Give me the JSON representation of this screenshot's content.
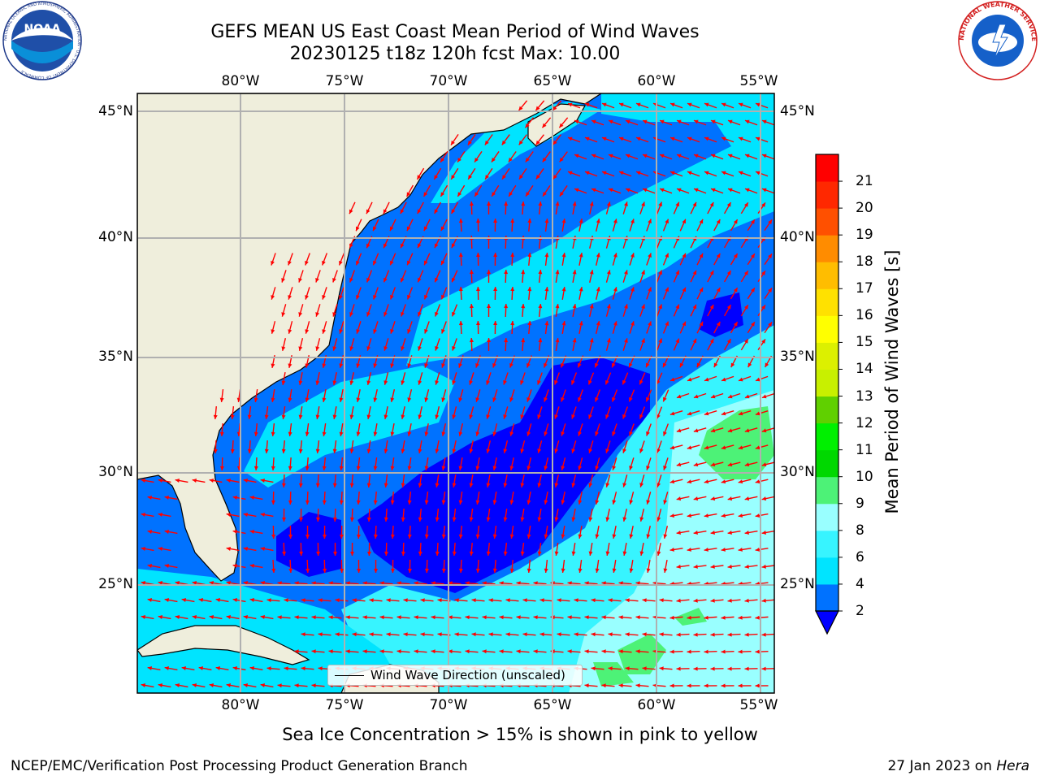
{
  "title": {
    "line1": "GEFS MEAN US East Coast Mean Period of Wind Waves",
    "line2": "20230125 t18z 120h fcst   Max: 10.00"
  },
  "map": {
    "region": "US East Coast / Western North Atlantic",
    "land_color": "#efeedc",
    "grid_color": "#b0b0b0",
    "arrow_color": "#ff0000",
    "longitude_labels": [
      "80°W",
      "75°W",
      "70°W",
      "65°W",
      "60°W",
      "55°W"
    ],
    "latitude_labels": [
      "45°N",
      "40°N",
      "35°N",
      "30°N",
      "25°N"
    ]
  },
  "colorbar": {
    "label": "Mean Period of Wind Waves [s]",
    "ticks": [
      "2",
      "4",
      "6",
      "8",
      "9",
      "10",
      "11",
      "12",
      "13",
      "14",
      "15",
      "16",
      "17",
      "18",
      "19",
      "20",
      "21"
    ],
    "colors": [
      "#0072ff",
      "#00e4ff",
      "#37f4ff",
      "#99ffff",
      "#4df277",
      "#00d800",
      "#00f000",
      "#60d000",
      "#c8f000",
      "#dcf000",
      "#ffff00",
      "#ffe100",
      "#ffbd00",
      "#ff8c00",
      "#ff5000",
      "#ff2800",
      "#ff0000"
    ],
    "extend_low_color": "#0000ff"
  },
  "legend": {
    "label": "Wind Wave Direction (unscaled)"
  },
  "caption": "Sea Ice Concentration > 15% is shown in pink to yellow",
  "footer": {
    "left": "NCEP/EMC/Verification Post Processing Product Generation Branch",
    "right_date": "27 Jan 2023 on ",
    "right_host": "Hera"
  },
  "logos": {
    "noaa_text": "NOAA",
    "noaa_ring_text": "NATIONAL OCEANIC AND ATMOSPHERIC ADMINISTRATION · U.S. DEPARTMENT OF COMMERCE",
    "nws_ring_text": "NATIONAL WEATHER SERVICE"
  }
}
